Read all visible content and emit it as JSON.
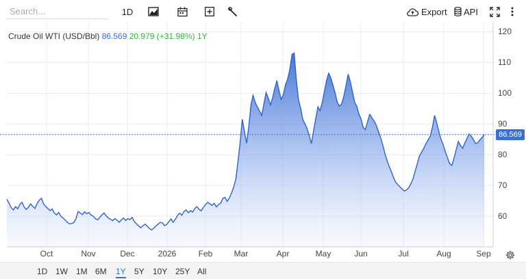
{
  "toolbar": {
    "search_placeholder": "Search...",
    "interval_label": "1D",
    "export_label": "Export",
    "api_label": "API",
    "icons": [
      "chart-type-icon",
      "calendar-icon",
      "plus-box-icon",
      "wrench-icon",
      "cloud-upload-icon",
      "database-icon",
      "fullscreen-icon",
      "more-vertical-icon"
    ]
  },
  "legend": {
    "name": "Crude Oil WTI (USD/Bbl)",
    "last": "86.569",
    "change": "20.979 (+31.98%)",
    "range": "1Y"
  },
  "price_tag": "86.569",
  "colors": {
    "accent": "#3b6fd1",
    "up": "#2db83d"
  },
  "ranges": [
    "1D",
    "1W",
    "1M",
    "6M",
    "1Y",
    "5Y",
    "10Y",
    "25Y",
    "All"
  ],
  "active_range": "1Y",
  "chart_data": {
    "type": "area",
    "x_labels": [
      "Oct",
      "Nov",
      "Dec",
      "2026",
      "Feb",
      "Mar",
      "Apr",
      "May",
      "Jun",
      "Jul",
      "Aug",
      "Sep"
    ],
    "y_ticks": [
      60,
      70,
      80,
      90,
      100,
      110,
      120
    ],
    "ylim": [
      50,
      123
    ],
    "last_value": 86.569,
    "series": [
      {
        "values": [
          65.5,
          64.2,
          62.8,
          62.0,
          63.1,
          62.4,
          63.8,
          64.5,
          63.0,
          62.2,
          62.9,
          64.0,
          63.2,
          62.5,
          64.1,
          65.2,
          65.8,
          64.0,
          63.1,
          62.5,
          61.8,
          62.3,
          61.0,
          60.4,
          61.2,
          60.0,
          59.4,
          58.7,
          58.0,
          57.5,
          57.6,
          57.9,
          59.2,
          61.5,
          61.0,
          60.5,
          61.4,
          60.8,
          61.2,
          60.3,
          60.0,
          59.2,
          58.8,
          59.6,
          60.4,
          61.0,
          60.1,
          59.4,
          59.0,
          58.5,
          59.2,
          58.7,
          58.0,
          58.8,
          59.4,
          58.6,
          59.2,
          58.9,
          59.6,
          58.2,
          57.5,
          56.8,
          56.2,
          56.9,
          57.4,
          56.7,
          56.0,
          55.5,
          56.1,
          56.8,
          57.4,
          58.0,
          57.8,
          56.9,
          57.3,
          58.2,
          59.1,
          58.0,
          59.0,
          60.2,
          61.0,
          60.3,
          61.5,
          62.0,
          61.1,
          61.8,
          61.3,
          62.5,
          63.1,
          62.2,
          61.7,
          62.9,
          63.8,
          64.5,
          64.0,
          63.5,
          64.2,
          63.0,
          63.8,
          64.2,
          65.8,
          66.1,
          64.8,
          65.9,
          67.5,
          69.5,
          72.0,
          77.8,
          84.0,
          91.5,
          87.5,
          83.8,
          89.0,
          96.2,
          99.3,
          97.0,
          95.5,
          94.2,
          92.8,
          96.5,
          100.2,
          98.5,
          96.2,
          98.4,
          101.5,
          104.1,
          100.8,
          98.0,
          99.5,
          102.8,
          104.6,
          107.8,
          112.6,
          113.1,
          104.5,
          97.8,
          95.2,
          91.5,
          90.0,
          88.5,
          86.2,
          83.6,
          87.8,
          91.8,
          95.6,
          94.3,
          97.0,
          100.5,
          104.2,
          106.5,
          105.0,
          102.6,
          100.0,
          97.0,
          95.8,
          96.5,
          99.0,
          102.5,
          106.2,
          103.8,
          100.5,
          97.1,
          95.8,
          93.2,
          91.6,
          88.8,
          88.2,
          90.8,
          93.1,
          92.0,
          91.0,
          89.6,
          87.6,
          85.6,
          83.2,
          80.5,
          78.1,
          76.2,
          74.5,
          72.6,
          71.0,
          70.3,
          69.5,
          68.8,
          68.2,
          68.5,
          69.2,
          70.5,
          72.0,
          74.6,
          77.0,
          79.6,
          80.8,
          82.1,
          83.5,
          84.8,
          86.0,
          88.8,
          92.8,
          90.4,
          87.5,
          85.0,
          83.2,
          81.0,
          79.0,
          77.1,
          76.5,
          78.8,
          81.6,
          84.3,
          83.0,
          82.1,
          83.8,
          85.3,
          86.8,
          86.0,
          84.9,
          83.6,
          83.9,
          84.8,
          85.6,
          86.569
        ]
      }
    ]
  }
}
